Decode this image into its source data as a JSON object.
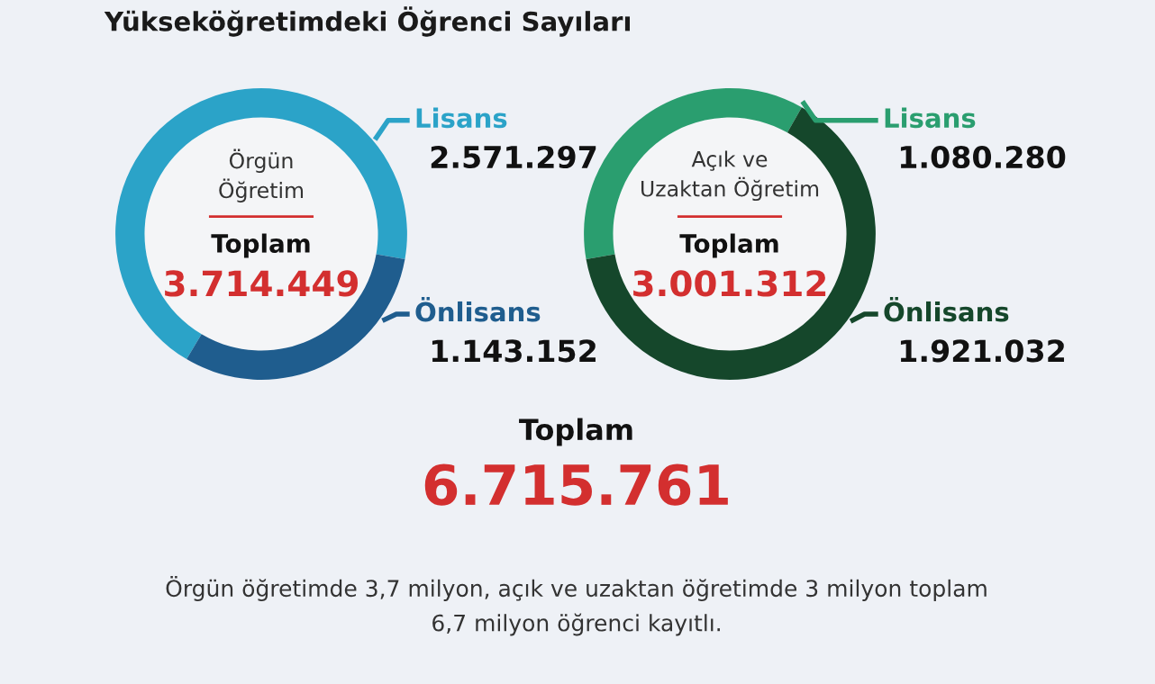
{
  "chart_data": [
    {
      "type": "other",
      "title": "Yükseköğretimdeki Öğrenci Sayıları",
      "annotations": [
        "Toplam",
        "6.715.761",
        "Örgün öğretimde 3,7 milyon, açık ve uzaktan öğretimde 3 milyon toplam",
        "6,7 milyon öğrenci kayıtlı."
      ]
    },
    {
      "type": "donut",
      "title": "Örgün\nÖğretim",
      "categories": [
        "Lisans",
        "Önlisans"
      ],
      "values": [
        2571297,
        1143152
      ],
      "value_labels": [
        "2.571.297",
        "1.143.152"
      ],
      "colors": [
        "#2ba3c8",
        "#1f5d8e"
      ],
      "annotations": [
        "Toplam",
        "3.714.449"
      ]
    },
    {
      "type": "donut",
      "title": "Açık ve\nUzaktan Öğretim",
      "categories": [
        "Lisans",
        "Önlisans"
      ],
      "values": [
        1080280,
        1921032
      ],
      "value_labels": [
        "1.080.280",
        "1.921.032"
      ],
      "colors": [
        "#2a9e6f",
        "#15472b"
      ],
      "annotations": [
        "Toplam",
        "3.001.312"
      ]
    }
  ]
}
